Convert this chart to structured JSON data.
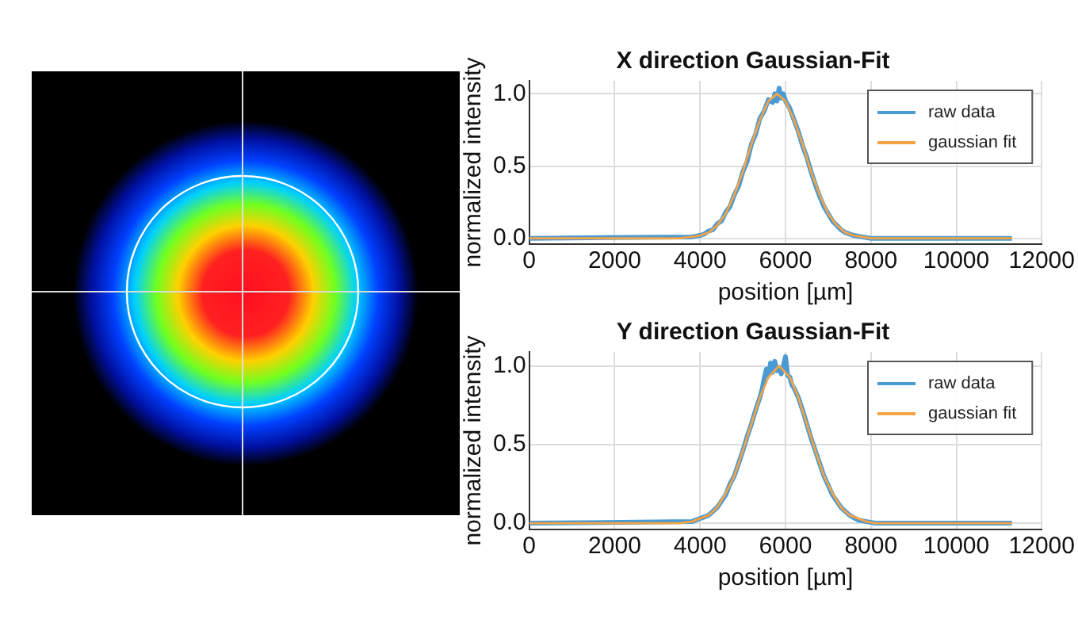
{
  "chart_data": [
    {
      "type": "line",
      "title": "X direction Gaussian-Fit",
      "xlabel": "position [µm]",
      "ylabel": "normalized intensity",
      "xlim": [
        0,
        12000
      ],
      "xticks": [
        0,
        2000,
        4000,
        6000,
        8000,
        10000,
        12000
      ],
      "ylim": [
        -0.04,
        1.09
      ],
      "yticks": [
        {
          "value": 0,
          "label": "0.0"
        },
        {
          "value": 0.5,
          "label": "0.5"
        },
        {
          "value": 1,
          "label": "1.0"
        }
      ],
      "grid": true,
      "legend": "top right",
      "marker": "none",
      "line_style": "solid",
      "series": [
        {
          "name": "raw data",
          "color": "#4a9ad4",
          "x": [
            0,
            3800,
            4000,
            4100,
            4200,
            4300,
            4400,
            4500,
            4600,
            4700,
            4800,
            4900,
            5000,
            5100,
            5200,
            5300,
            5400,
            5500,
            5600,
            5700,
            5750,
            5800,
            5850,
            5900,
            5950,
            6000,
            6100,
            6200,
            6300,
            6400,
            6500,
            6600,
            6700,
            6800,
            6900,
            7000,
            7100,
            7200,
            7300,
            7400,
            7600,
            7800,
            8000,
            11300
          ],
          "values": [
            0,
            0.01,
            0.02,
            0.03,
            0.05,
            0.06,
            0.1,
            0.12,
            0.18,
            0.22,
            0.3,
            0.36,
            0.46,
            0.53,
            0.65,
            0.72,
            0.83,
            0.88,
            0.96,
            0.94,
            1.0,
            0.95,
            1.04,
            0.97,
            1.0,
            0.95,
            0.9,
            0.82,
            0.74,
            0.64,
            0.56,
            0.46,
            0.37,
            0.29,
            0.22,
            0.17,
            0.12,
            0.09,
            0.06,
            0.04,
            0.02,
            0.01,
            0,
            0
          ]
        },
        {
          "name": "gaussian fit",
          "color": "#f5a445",
          "x": [
            0,
            2000,
            3500,
            3800,
            4000,
            4200,
            4400,
            4600,
            4800,
            5000,
            5200,
            5400,
            5600,
            5800,
            6000,
            6200,
            6400,
            6600,
            6800,
            7000,
            7200,
            7400,
            7600,
            7800,
            8000,
            9000,
            11300
          ],
          "values": [
            0,
            0,
            0,
            0.01,
            0.02,
            0.04,
            0.09,
            0.17,
            0.3,
            0.46,
            0.65,
            0.82,
            0.95,
            1.0,
            0.95,
            0.82,
            0.65,
            0.46,
            0.3,
            0.17,
            0.09,
            0.04,
            0.02,
            0.01,
            0,
            0,
            0
          ]
        }
      ]
    },
    {
      "type": "line",
      "title": "Y direction Gaussian-Fit",
      "xlabel": "position [µm]",
      "ylabel": "normalized intensity",
      "xlim": [
        0,
        12000
      ],
      "xticks": [
        0,
        2000,
        4000,
        6000,
        8000,
        10000,
        12000
      ],
      "ylim": [
        -0.04,
        1.09
      ],
      "yticks": [
        {
          "value": 0,
          "label": "0.0"
        },
        {
          "value": 0.5,
          "label": "0.5"
        },
        {
          "value": 1,
          "label": "1.0"
        }
      ],
      "grid": true,
      "legend": "top right",
      "marker": "none",
      "line_style": "solid",
      "series": [
        {
          "name": "raw data",
          "color": "#4a9ad4",
          "x": [
            0,
            3800,
            4000,
            4200,
            4400,
            4500,
            4600,
            4700,
            4800,
            4900,
            5000,
            5100,
            5200,
            5300,
            5400,
            5450,
            5500,
            5550,
            5600,
            5650,
            5700,
            5750,
            5800,
            5850,
            5900,
            5950,
            6000,
            6050,
            6100,
            6150,
            6200,
            6300,
            6400,
            6500,
            6600,
            6700,
            6800,
            6900,
            7000,
            7100,
            7200,
            7300,
            7500,
            7700,
            7900,
            8100,
            11300
          ],
          "values": [
            0,
            0.01,
            0.03,
            0.05,
            0.1,
            0.14,
            0.18,
            0.25,
            0.3,
            0.38,
            0.46,
            0.55,
            0.63,
            0.72,
            0.8,
            0.85,
            0.92,
            0.98,
            0.94,
            1.02,
            0.96,
            1.03,
            0.97,
            0.99,
            0.95,
            1.0,
            1.06,
            0.94,
            0.93,
            0.88,
            0.86,
            0.8,
            0.72,
            0.63,
            0.54,
            0.46,
            0.38,
            0.3,
            0.24,
            0.18,
            0.14,
            0.1,
            0.05,
            0.02,
            0.01,
            0,
            0
          ]
        },
        {
          "name": "gaussian fit",
          "color": "#f5a445",
          "x": [
            0,
            2000,
            3500,
            3800,
            4000,
            4200,
            4400,
            4600,
            4800,
            5000,
            5200,
            5400,
            5600,
            5850,
            6100,
            6300,
            6500,
            6700,
            6900,
            7100,
            7300,
            7500,
            7700,
            7900,
            8100,
            9000,
            11300
          ],
          "values": [
            0,
            0,
            0,
            0.01,
            0.03,
            0.05,
            0.1,
            0.19,
            0.3,
            0.46,
            0.63,
            0.8,
            0.93,
            1.0,
            0.93,
            0.8,
            0.63,
            0.46,
            0.3,
            0.19,
            0.1,
            0.05,
            0.03,
            0.01,
            0,
            0,
            0
          ]
        }
      ]
    }
  ]
}
